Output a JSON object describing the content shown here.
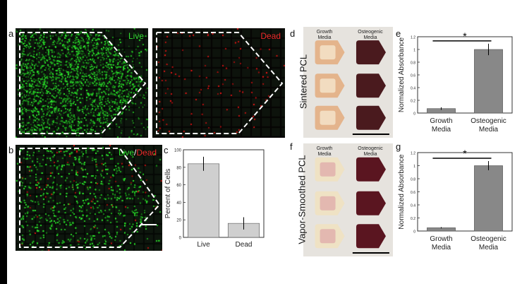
{
  "panels": {
    "a": {
      "letter": "a",
      "live_label": "Live",
      "dead_label": "Dead"
    },
    "b": {
      "letter": "b",
      "live_label": "Live",
      "slash": "/",
      "dead_label": "Dead"
    },
    "c": {
      "letter": "c"
    },
    "d": {
      "letter": "d",
      "header_left": "Growth\nMedia",
      "header_right": "Osteogenic\nMedia",
      "side_label": "Sintered PCL"
    },
    "e": {
      "letter": "e"
    },
    "f": {
      "letter": "f",
      "header_left": "Growth\nMedia",
      "header_right": "Osteogenic\nMedia",
      "side_label": "Vapor-Smoothed PCL"
    },
    "g": {
      "letter": "g"
    }
  },
  "colors": {
    "live": "#22dd22",
    "dead": "#ee2222",
    "bar_gray": "#888888",
    "bar_light": "#cfcfcf"
  },
  "chart_data": [
    {
      "id": "c",
      "type": "bar",
      "categories": [
        "Live",
        "Dead"
      ],
      "values": [
        84,
        16
      ],
      "errors": [
        8,
        7
      ],
      "ylabel": "Percent of Cells",
      "ylim": [
        0,
        100
      ],
      "yticks": [
        0,
        20,
        40,
        60,
        80,
        100
      ]
    },
    {
      "id": "e",
      "type": "bar",
      "categories": [
        "Growth\nMedia",
        "Osteogenic\nMedia"
      ],
      "values": [
        0.07,
        1.0
      ],
      "errors": [
        0.02,
        0.09
      ],
      "ylabel": "Normalized Absorbance",
      "ylim": [
        0,
        1.2
      ],
      "yticks": [
        0,
        0.2,
        0.4,
        0.6,
        0.8,
        1,
        1.2
      ],
      "significance": "*"
    },
    {
      "id": "g",
      "type": "bar",
      "categories": [
        "Growth\nMedia",
        "Osteogenic\nMedia"
      ],
      "values": [
        0.05,
        1.0
      ],
      "errors": [
        0.01,
        0.07
      ],
      "ylabel": "Normalized Absorbance",
      "ylim": [
        0,
        1.2
      ],
      "yticks": [
        0,
        0.2,
        0.4,
        0.6,
        0.8,
        1,
        1.2
      ],
      "significance": "*"
    }
  ]
}
